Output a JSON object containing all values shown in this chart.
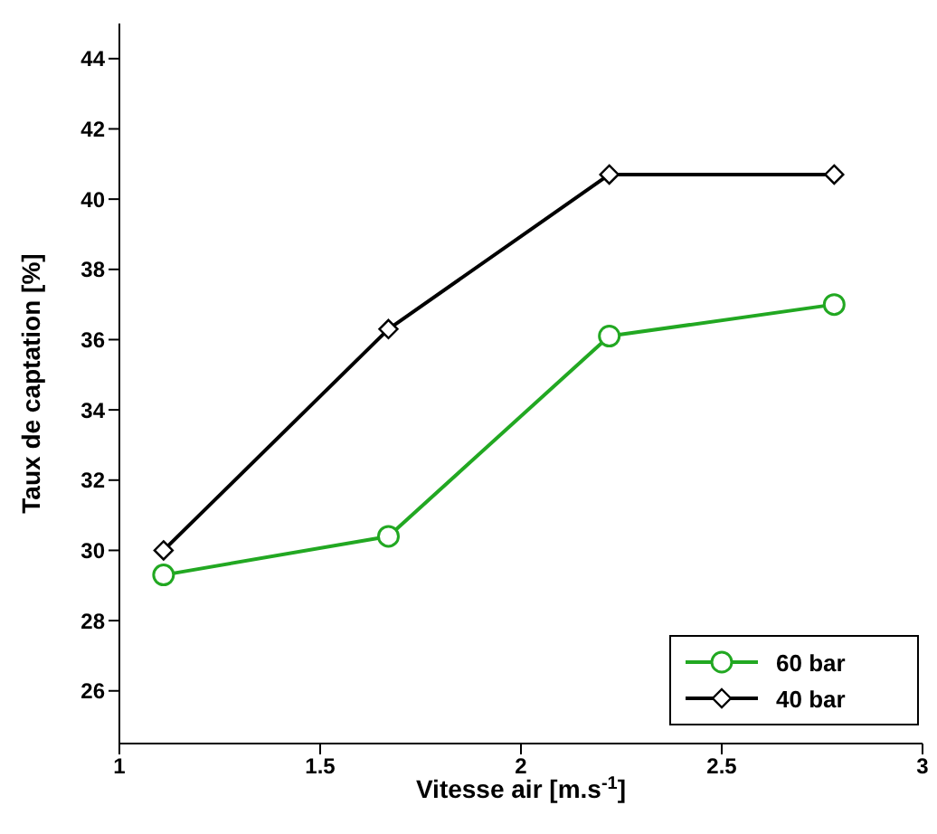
{
  "chart_data": {
    "type": "line",
    "xlabel": "Vitesse air [m.s$^{-1}$]",
    "ylabel": "Taux de captation [%]",
    "x": [
      1.11,
      1.67,
      2.22,
      2.78
    ],
    "series": [
      {
        "name": "60 bar",
        "color": "#22a822",
        "values": [
          29.3,
          30.4,
          36.1,
          37.0
        ],
        "marker": "circle"
      },
      {
        "name": "40 bar",
        "color": "#000000",
        "values": [
          30.0,
          36.3,
          40.7,
          40.7
        ],
        "marker": "diamond"
      }
    ],
    "xlim": [
      1,
      3
    ],
    "xticks": [
      1,
      1.5,
      2,
      2.5,
      3
    ],
    "ylim": [
      24.5,
      45
    ],
    "yticks": [
      26,
      28,
      30,
      32,
      34,
      36,
      38,
      40,
      42,
      44
    ],
    "grid": false,
    "legend": "bottom right",
    "line_style": "solid"
  }
}
